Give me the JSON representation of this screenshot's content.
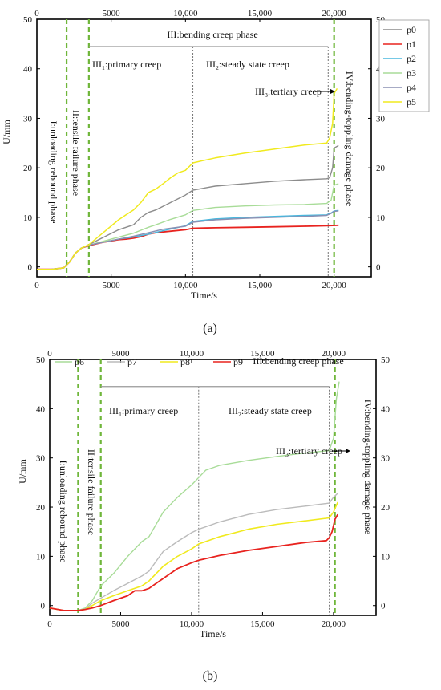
{
  "figure": {
    "caption_a": "(a)",
    "caption_b": "(b)"
  },
  "chart_data": [
    {
      "type": "line",
      "title": "",
      "xlabel": "Time/s",
      "ylabel": "U/mm",
      "xlim": [
        0,
        22500
      ],
      "ylim": [
        -2,
        50
      ],
      "x_ticks": [
        "0",
        "5000",
        "10,000",
        "15,000",
        "20,000"
      ],
      "x_tick_values": [
        0,
        5000,
        10000,
        15000,
        20000
      ],
      "x_top_ticks": [
        "0",
        "5000",
        "10,000",
        "15,000",
        "20,000"
      ],
      "y_ticks": [
        "0",
        "10",
        "20",
        "30",
        "40",
        "50"
      ],
      "y_tick_values": [
        0,
        10,
        20,
        30,
        40,
        50
      ],
      "y_right_ticks": [
        "0",
        "10",
        "20",
        "30",
        "40",
        "50"
      ],
      "legend_placement": "top-right",
      "grid": false,
      "phase_lines": [
        2000,
        3500,
        20000
      ],
      "stage_lines": [
        10500,
        19600
      ],
      "annotations": {
        "bending_bracket": [
          3500,
          19600,
          44.5
        ],
        "phase1": "I:unloading rebound phase",
        "phase2": "II:tensile failure phase",
        "phase3": "III:bending creep phase",
        "primary": "III",
        "primary_sub": "1",
        "primary_rest": ":primary creep",
        "steady": "III",
        "steady_sub": "2",
        "steady_rest": ":steady state creep",
        "tertiary": "III",
        "tertiary_sub": "3",
        "tertiary_rest": ":tertiary creep",
        "phase4": "IV:bending-toppling damage phase"
      },
      "series": [
        {
          "name": "p0",
          "color": "#8c8c8c",
          "x": [
            0,
            1000,
            1800,
            2200,
            2600,
            3000,
            3500,
            4500,
            5500,
            6000,
            6500,
            7000,
            7500,
            8000,
            9000,
            10000,
            10500,
            12000,
            14000,
            16000,
            18000,
            19500,
            19700,
            19900,
            20000,
            20300
          ],
          "y": [
            -0.5,
            -0.5,
            -0.2,
            1.0,
            2.8,
            3.8,
            4.5,
            6.0,
            7.5,
            8.0,
            8.5,
            10.0,
            11.0,
            11.5,
            13.0,
            14.5,
            15.5,
            16.3,
            16.8,
            17.3,
            17.6,
            17.8,
            18.0,
            20.0,
            24.0,
            24.5
          ]
        },
        {
          "name": "p1",
          "color": "#e8231f",
          "x": [
            0,
            1000,
            1800,
            2200,
            2600,
            3000,
            3500,
            4500,
            5500,
            6000,
            6500,
            7000,
            7500,
            8000,
            9000,
            10000,
            10500,
            12000,
            14000,
            16000,
            18000,
            19500,
            20300
          ],
          "y": [
            -0.5,
            -0.5,
            -0.2,
            1.0,
            2.8,
            3.8,
            4.3,
            5.0,
            5.5,
            5.6,
            5.8,
            6.1,
            6.6,
            6.9,
            7.2,
            7.5,
            7.8,
            7.9,
            8.0,
            8.1,
            8.2,
            8.3,
            8.4
          ]
        },
        {
          "name": "p2",
          "color": "#49b7dd",
          "x": [
            0,
            1000,
            1800,
            2200,
            2600,
            3000,
            3500,
            4500,
            5500,
            6500,
            7500,
            8500,
            10000,
            10500,
            12000,
            14000,
            16000,
            18000,
            19500,
            19800,
            20000,
            20300
          ],
          "y": [
            -0.5,
            -0.5,
            -0.2,
            1.0,
            2.8,
            3.8,
            4.4,
            5.0,
            5.6,
            6.0,
            6.6,
            7.3,
            8.3,
            9.2,
            9.7,
            10.0,
            10.2,
            10.4,
            10.5,
            10.9,
            11.3,
            11.4
          ]
        },
        {
          "name": "p3",
          "color": "#a8dc98",
          "x": [
            0,
            1000,
            1800,
            2200,
            2600,
            3000,
            3500,
            4500,
            5500,
            6500,
            7000,
            7500,
            8000,
            9000,
            10000,
            10500,
            12000,
            14000,
            16000,
            18000,
            19500,
            19800,
            20000,
            20300
          ],
          "y": [
            -0.5,
            -0.5,
            -0.2,
            1.0,
            2.8,
            3.8,
            4.4,
            5.2,
            6.0,
            6.8,
            7.4,
            8.0,
            8.5,
            9.6,
            10.5,
            11.4,
            12.0,
            12.3,
            12.5,
            12.6,
            12.8,
            13.5,
            16.5,
            16.8
          ]
        },
        {
          "name": "p4",
          "color": "#8a8fb2",
          "x": [
            0,
            1000,
            1800,
            2200,
            2600,
            3000,
            3500,
            4500,
            5500,
            6500,
            7500,
            8500,
            10000,
            10500,
            12000,
            14000,
            16000,
            18000,
            19500,
            19800,
            20000,
            20300
          ],
          "y": [
            -0.5,
            -0.5,
            -0.2,
            1.0,
            2.8,
            3.8,
            4.4,
            5.0,
            5.6,
            6.2,
            6.9,
            7.6,
            8.2,
            9.0,
            9.5,
            9.8,
            10.0,
            10.2,
            10.4,
            10.8,
            11.2,
            11.3
          ]
        },
        {
          "name": "p5",
          "color": "#f0ea1e",
          "x": [
            0,
            1000,
            1800,
            2200,
            2600,
            3000,
            3500,
            4500,
            5500,
            6000,
            6500,
            7000,
            7500,
            8000,
            8500,
            9000,
            9500,
            10000,
            10500,
            12000,
            14000,
            16000,
            18000,
            19500,
            19700,
            19900,
            20000,
            20200
          ],
          "y": [
            -0.5,
            -0.5,
            -0.2,
            1.0,
            2.8,
            3.8,
            4.5,
            7.0,
            9.5,
            10.5,
            11.5,
            13.0,
            15.0,
            15.7,
            16.8,
            18.0,
            19.0,
            19.5,
            21.0,
            22.0,
            23.0,
            23.8,
            24.6,
            25.0,
            26.0,
            29.0,
            35.0,
            36.0
          ]
        }
      ]
    },
    {
      "type": "line",
      "title": "",
      "xlabel": "Time/s",
      "ylabel": "U/mm",
      "xlim": [
        0,
        23000
      ],
      "ylim": [
        -2,
        50
      ],
      "x_ticks": [
        "0",
        "5000",
        "10,000",
        "15,000",
        "20,000"
      ],
      "x_tick_values": [
        0,
        5000,
        10000,
        15000,
        20000
      ],
      "x_top_ticks": [
        "0",
        "5000",
        "10,000",
        "15,000",
        "20,000"
      ],
      "y_ticks": [
        "0",
        "10",
        "20",
        "30",
        "40",
        "50"
      ],
      "y_tick_values": [
        0,
        10,
        20,
        30,
        40,
        50
      ],
      "y_right_ticks": [
        "0",
        "10",
        "20",
        "30",
        "40",
        "50"
      ],
      "legend_placement": "top",
      "grid": false,
      "phase_lines": [
        2000,
        3600,
        20100
      ],
      "stage_lines": [
        10500,
        19700
      ],
      "annotations": {
        "bending_bracket": [
          3600,
          19700,
          44.5
        ],
        "phase1": "I:unloading rebound phase",
        "phase2": "II:tensile failure phase",
        "phase3": "III:bending creep phase",
        "primary": "III",
        "primary_sub": "1",
        "primary_rest": ":primary creep",
        "steady": "III",
        "steady_sub": "2",
        "steady_rest": ":steady state creep",
        "tertiary": "III",
        "tertiary_sub": "3",
        "tertiary_rest": ":tertiary creep",
        "phase4": "IV:bending-toppling damage phase"
      },
      "series": [
        {
          "name": "p6",
          "color": "#a8dc98",
          "x": [
            0,
            1000,
            2000,
            2500,
            3000,
            3600,
            4500,
            5500,
            6500,
            7000,
            7500,
            8000,
            9000,
            10000,
            10500,
            11000,
            12000,
            14000,
            16000,
            18000,
            19700,
            20000,
            20200,
            20400
          ],
          "y": [
            -0.5,
            -1.0,
            -1.0,
            -0.5,
            1.0,
            4.0,
            6.5,
            10.0,
            13.0,
            14.0,
            16.5,
            19.0,
            22.0,
            24.5,
            26.0,
            27.5,
            28.5,
            29.5,
            30.3,
            31.0,
            31.5,
            34.0,
            42.0,
            45.5
          ]
        },
        {
          "name": "p7",
          "color": "#bbbbbb",
          "x": [
            0,
            1000,
            2000,
            2500,
            3000,
            3600,
            4500,
            5500,
            6500,
            7000,
            7500,
            8000,
            9000,
            10000,
            10500,
            12000,
            14000,
            16000,
            18000,
            19700,
            20000,
            20300
          ],
          "y": [
            -0.5,
            -1.0,
            -1.0,
            -0.7,
            0.5,
            1.5,
            3.0,
            4.5,
            6.0,
            7.0,
            9.0,
            11.0,
            13.0,
            14.8,
            15.5,
            17.0,
            18.5,
            19.5,
            20.2,
            20.8,
            22.0,
            22.8
          ]
        },
        {
          "name": "p8",
          "color": "#f0ea1e",
          "x": [
            0,
            1000,
            2000,
            2500,
            3000,
            3600,
            4500,
            5500,
            6500,
            7000,
            7500,
            8000,
            9000,
            10000,
            10500,
            12000,
            14000,
            16000,
            18000,
            19700,
            20000,
            20300
          ],
          "y": [
            -0.5,
            -1.0,
            -1.0,
            -0.8,
            0.0,
            1.0,
            2.0,
            3.0,
            4.0,
            5.0,
            6.5,
            8.0,
            10.0,
            11.5,
            12.5,
            14.0,
            15.5,
            16.5,
            17.2,
            17.8,
            19.0,
            21.0
          ]
        },
        {
          "name": "p9",
          "color": "#e8231f",
          "x": [
            0,
            1000,
            2000,
            2500,
            3000,
            3600,
            4500,
            5500,
            6000,
            6500,
            7000,
            7500,
            8000,
            9000,
            10000,
            10500,
            12000,
            14000,
            16000,
            18000,
            19500,
            19700,
            19900,
            20100,
            20300
          ],
          "y": [
            -0.5,
            -1.0,
            -1.0,
            -0.8,
            -0.5,
            0.0,
            1.0,
            2.0,
            3.0,
            3.0,
            3.5,
            4.5,
            5.5,
            7.5,
            8.7,
            9.2,
            10.2,
            11.2,
            12.0,
            12.8,
            13.2,
            13.8,
            15.0,
            17.5,
            18.5
          ]
        }
      ]
    }
  ]
}
